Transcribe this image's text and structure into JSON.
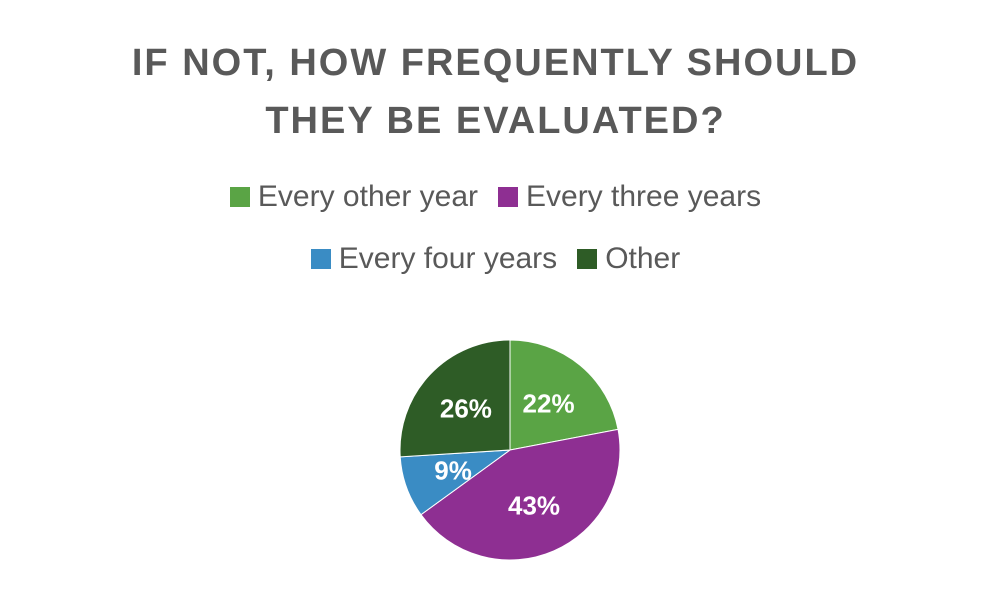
{
  "chart_data": {
    "type": "pie",
    "title_lines": [
      "IF NOT, HOW FREQUENTLY SHOULD",
      "THEY BE EVALUATED?"
    ],
    "categories": [
      "Every other year",
      "Every three years",
      "Every four years",
      "Other"
    ],
    "values": [
      22,
      43,
      9,
      26
    ],
    "value_labels": [
      "22%",
      "43%",
      "9%",
      "26%"
    ],
    "colors": [
      "#5aa445",
      "#8e2f92",
      "#3a8cc4",
      "#2e5c26"
    ],
    "legend_position": "top"
  }
}
